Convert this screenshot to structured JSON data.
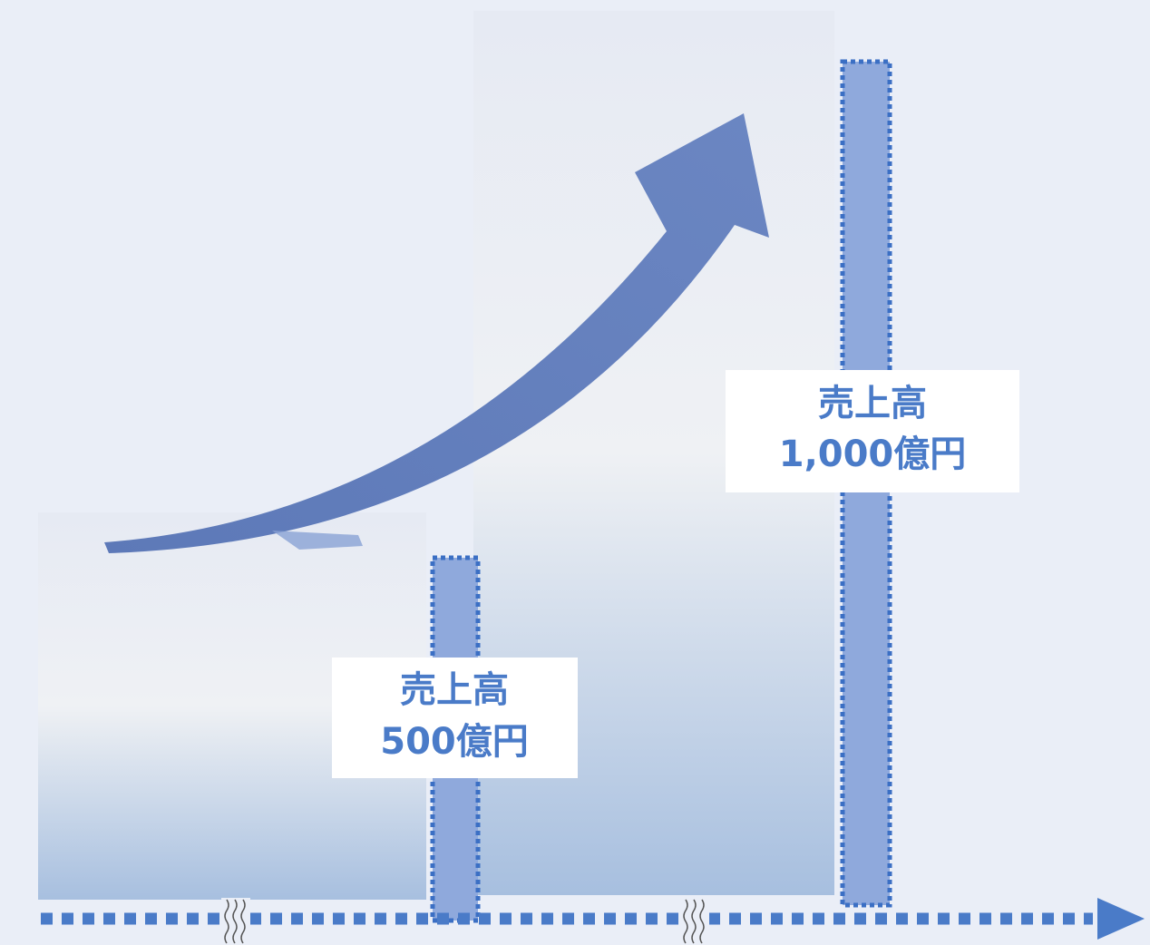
{
  "labels": [
    {
      "line1": "売上高",
      "line2": "500億円"
    },
    {
      "line1": "売上高",
      "line2": "1,000億円"
    }
  ]
}
